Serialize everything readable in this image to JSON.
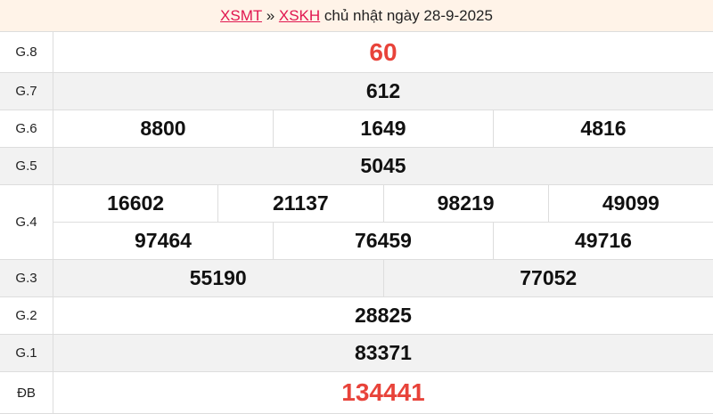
{
  "header": {
    "link1": "XSMT",
    "sep": " » ",
    "link2": "XSKH",
    "title": " chủ nhật ngày 28-9-2025"
  },
  "accent_color": "#e8433a",
  "prizes": [
    {
      "label": "G.8",
      "rows": [
        [
          "60"
        ]
      ]
    },
    {
      "label": "G.7",
      "rows": [
        [
          "612"
        ]
      ]
    },
    {
      "label": "G.6",
      "rows": [
        [
          "8800",
          "1649",
          "4816"
        ]
      ]
    },
    {
      "label": "G.5",
      "rows": [
        [
          "5045"
        ]
      ]
    },
    {
      "label": "G.4",
      "rows": [
        [
          "16602",
          "21137",
          "98219",
          "49099"
        ],
        [
          "97464",
          "76459",
          "49716"
        ]
      ]
    },
    {
      "label": "G.3",
      "rows": [
        [
          "55190",
          "77052"
        ]
      ]
    },
    {
      "label": "G.2",
      "rows": [
        [
          "28825"
        ]
      ]
    },
    {
      "label": "G.1",
      "rows": [
        [
          "83371"
        ]
      ]
    },
    {
      "label": "ĐB",
      "rows": [
        [
          "134441"
        ]
      ]
    }
  ]
}
